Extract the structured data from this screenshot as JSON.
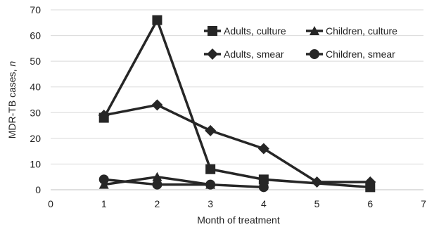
{
  "chart_data": {
    "type": "line",
    "xlabel": "Month of treatment",
    "ylabel": "MDR-TB cases, n",
    "xlim": [
      0,
      7
    ],
    "ylim": [
      0,
      70
    ],
    "x_ticks": [
      "0",
      "1",
      "2",
      "3",
      "4",
      "5",
      "6",
      "7"
    ],
    "y_ticks": [
      "0",
      "10",
      "20",
      "30",
      "40",
      "50",
      "60",
      "70"
    ],
    "grid": "horizontal",
    "legend_position": "top-right",
    "series_color": "#262626",
    "series": [
      {
        "name": "Adults, culture",
        "marker": "square",
        "x": [
          1,
          2,
          3,
          4,
          6
        ],
        "values": [
          28,
          66,
          8,
          4,
          1
        ]
      },
      {
        "name": "Children, culture",
        "marker": "triangle",
        "x": [
          1,
          2,
          3
        ],
        "values": [
          2,
          5,
          2
        ]
      },
      {
        "name": "Adults, smear",
        "marker": "diamond",
        "x": [
          1,
          2,
          3,
          4,
          5,
          6
        ],
        "values": [
          29,
          33,
          23,
          16,
          3,
          3
        ]
      },
      {
        "name": "Children, smear",
        "marker": "circle",
        "x": [
          1,
          2,
          3,
          4
        ],
        "values": [
          4,
          2,
          2,
          1
        ]
      }
    ]
  }
}
